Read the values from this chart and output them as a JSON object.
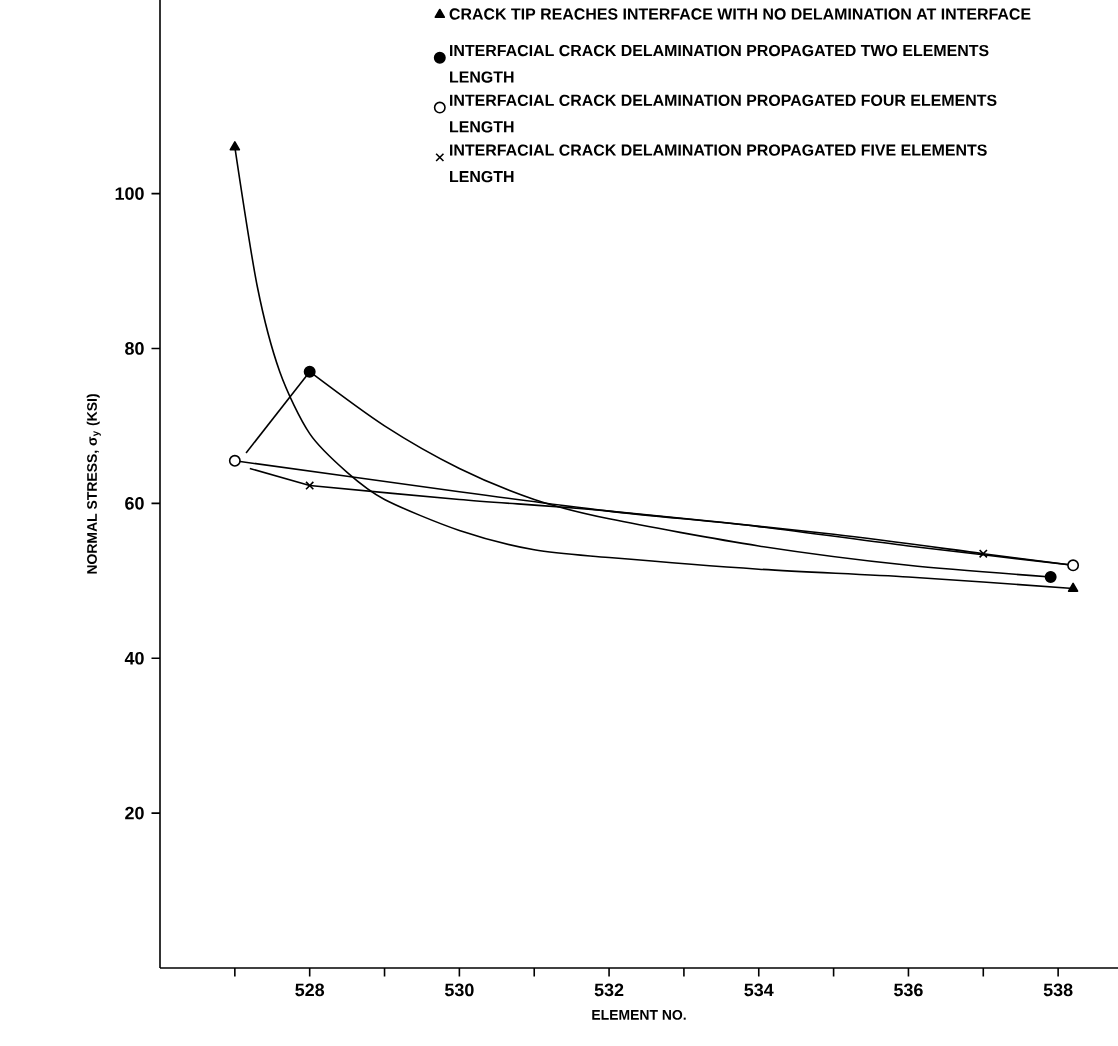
{
  "chart_data": {
    "type": "line",
    "xlabel": "ELEMENT NO.",
    "ylabel": "NORMAL STRESS, σ$_{y}$  (KSI)",
    "xlim": [
      526,
      538.8
    ],
    "ylim": [
      0,
      125
    ],
    "xticks": [
      {
        "value": 527,
        "label": null
      },
      528,
      {
        "value": 529,
        "label": null
      },
      530,
      {
        "value": 531,
        "label": null
      },
      532,
      {
        "value": 533,
        "label": null
      },
      534,
      {
        "value": 535,
        "label": null
      },
      536,
      {
        "value": 537,
        "label": null
      },
      538
    ],
    "yticks": [
      20,
      40,
      60,
      80,
      100
    ],
    "grid": false,
    "legend": "top right",
    "line_style": "solid",
    "marker": "none",
    "series": [
      {
        "name": "CRACK TIP REACHES INTERFACE WITH NO DELAMINATION AT INTERFACE",
        "type": "scatter",
        "color": "#000000",
        "marker": "triangle",
        "x": [
          527,
          538.2
        ],
        "values": [
          106,
          49
        ]
      },
      {
        "name": "INTERFACIAL CRACK DELAMINATION PROPAGATED TWO ELEMENTS LENGTH",
        "type": "scatter",
        "color": "#000000",
        "marker": "circle",
        "x": [
          528,
          537.9
        ],
        "values": [
          77,
          50.5
        ]
      },
      {
        "name": "INTERFACIAL CRACK DELAMINATION PROPAGATED FOUR ELEMENTS LENGTH",
        "type": "scatter",
        "color": "#ffffff",
        "marker": "circle",
        "x": [
          527,
          538.2
        ],
        "values": [
          65.5,
          52
        ]
      },
      {
        "name": "INTERFACIAL CRACK DELAMINATION PROPAGATED FIVE ELEMENTS LENGTH",
        "type": "scatter",
        "color": "#000000",
        "marker": "cross",
        "x": [
          528,
          537
        ],
        "values": [
          62.3,
          53.5
        ]
      },
      {
        "color": "#000000",
        "x": [
          527,
          527.3,
          527.6,
          528,
          528.5,
          529,
          530,
          531,
          532,
          534,
          536,
          538.2
        ],
        "values": [
          106,
          88,
          77,
          69,
          64,
          60.5,
          56.5,
          54,
          53,
          51.5,
          50.5,
          49
        ]
      },
      {
        "color": "#000000",
        "x": [
          528,
          529,
          530,
          531,
          532,
          534,
          536,
          537.9
        ],
        "values": [
          77,
          70,
          64.5,
          60.5,
          58,
          54.5,
          52,
          50.5
        ]
      },
      {
        "color": "#000000",
        "x": [
          527,
          530,
          532,
          534,
          536,
          538.2
        ],
        "values": [
          65.5,
          61.5,
          59,
          57,
          54.5,
          52
        ]
      },
      {
        "color": "#000000",
        "x": [
          528,
          530,
          532,
          535,
          537,
          538.2
        ],
        "values": [
          62.3,
          60.5,
          59,
          56,
          53.5,
          52
        ]
      },
      {
        "color": "#000000",
        "x": [
          527.15,
          528
        ],
        "values": [
          66.5,
          77
        ]
      },
      {
        "color": "#000000",
        "x": [
          527.2,
          528
        ],
        "values": [
          64.5,
          62.3
        ]
      }
    ]
  }
}
